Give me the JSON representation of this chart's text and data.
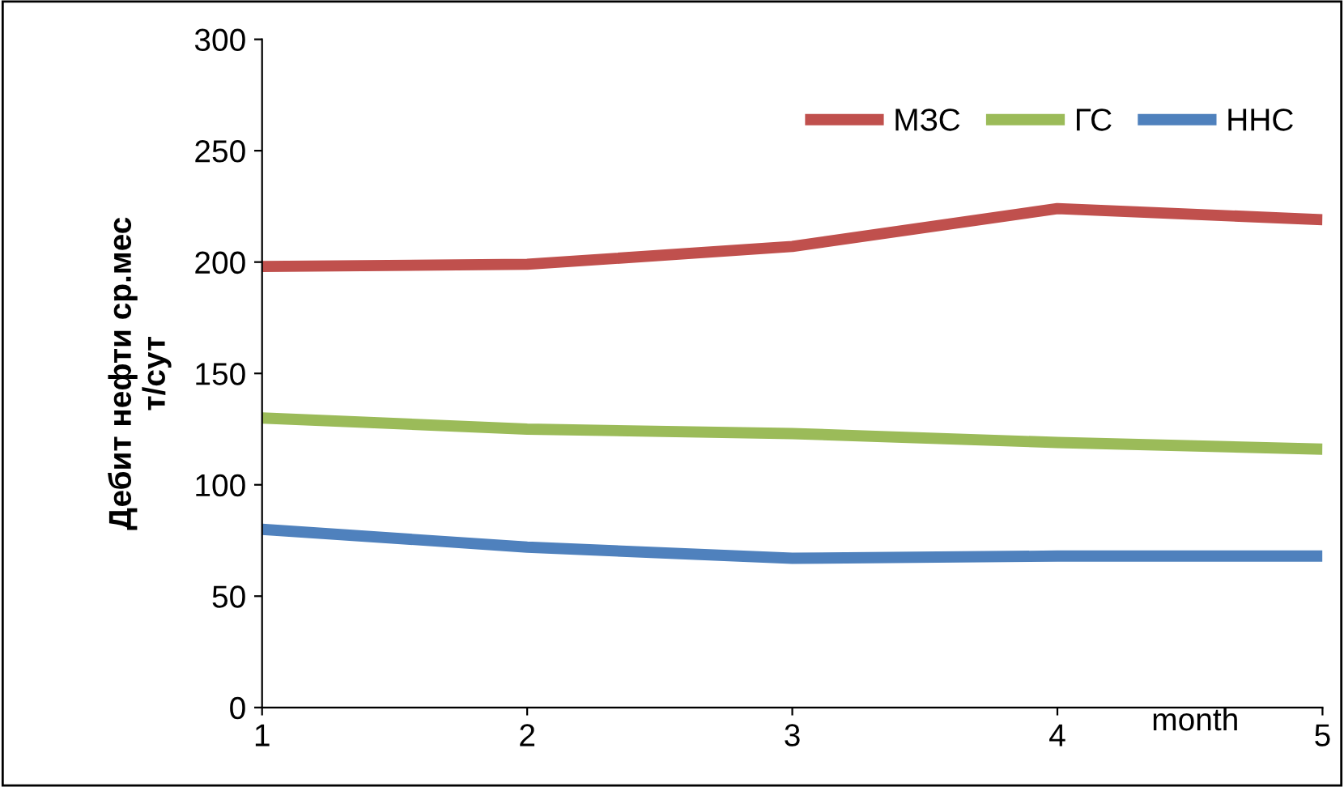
{
  "chart_data": {
    "type": "line",
    "xlabel": "month",
    "ylabel": "Дебит нефти ср.мес\nт/сут",
    "x": [
      1,
      2,
      3,
      4,
      5
    ],
    "series": [
      {
        "name": "МЗС",
        "color": "#c0504d",
        "values": [
          198,
          199,
          207,
          224,
          219
        ]
      },
      {
        "name": "ГС",
        "color": "#9bbb59",
        "values": [
          130,
          125,
          123,
          119,
          116
        ]
      },
      {
        "name": "ННС",
        "color": "#4f81bd",
        "values": [
          80,
          72,
          67,
          68,
          68
        ]
      }
    ],
    "xlim": [
      1,
      5
    ],
    "xticks": [
      1,
      2,
      3,
      4,
      5
    ],
    "ylim": [
      0,
      300
    ],
    "yticks": [
      0,
      50,
      100,
      150,
      200,
      250,
      300
    ],
    "grid": false,
    "legend": "top right",
    "marker": "none",
    "line_style": "solid"
  }
}
